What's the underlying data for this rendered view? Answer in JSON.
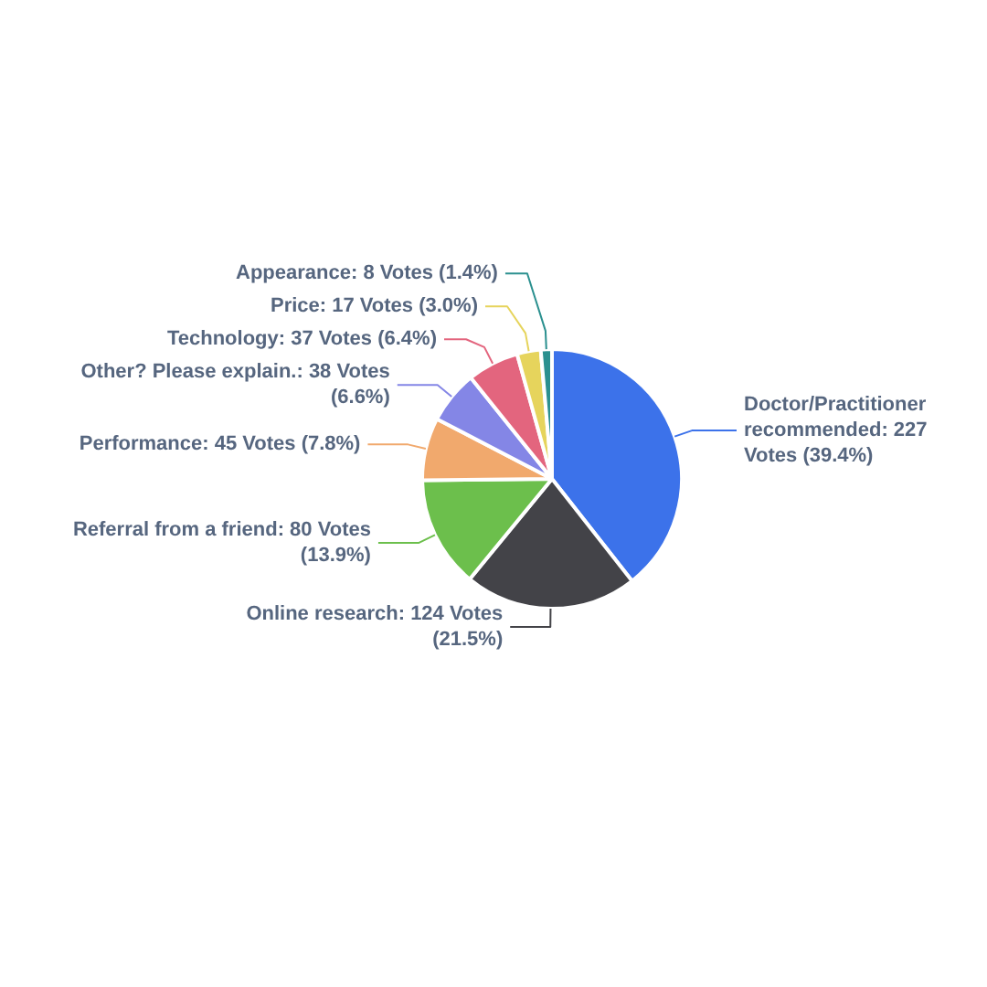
{
  "chart_data": {
    "type": "pie",
    "categories": [
      "Doctor/Practitioner recommended",
      "Online research",
      "Referral from a friend",
      "Performance",
      "Other? Please explain.",
      "Technology",
      "Price",
      "Appearance"
    ],
    "values": [
      227,
      124,
      80,
      45,
      38,
      37,
      17,
      8
    ],
    "value_labels": [
      "227 Votes (39.4%)",
      "124 Votes (21.5%)",
      "80 Votes (13.9%)",
      "45 Votes (7.8%)",
      "38 Votes (6.6%)",
      "37 Votes (6.4%)",
      "17 Votes (3.0%)",
      "8 Votes (1.4%)"
    ],
    "colors": [
      "#3c72ea",
      "#434348",
      "#6cbf4c",
      "#f1a96d",
      "#8486e6",
      "#e3657e",
      "#e6d45c",
      "#2b908f"
    ],
    "legend": false
  }
}
